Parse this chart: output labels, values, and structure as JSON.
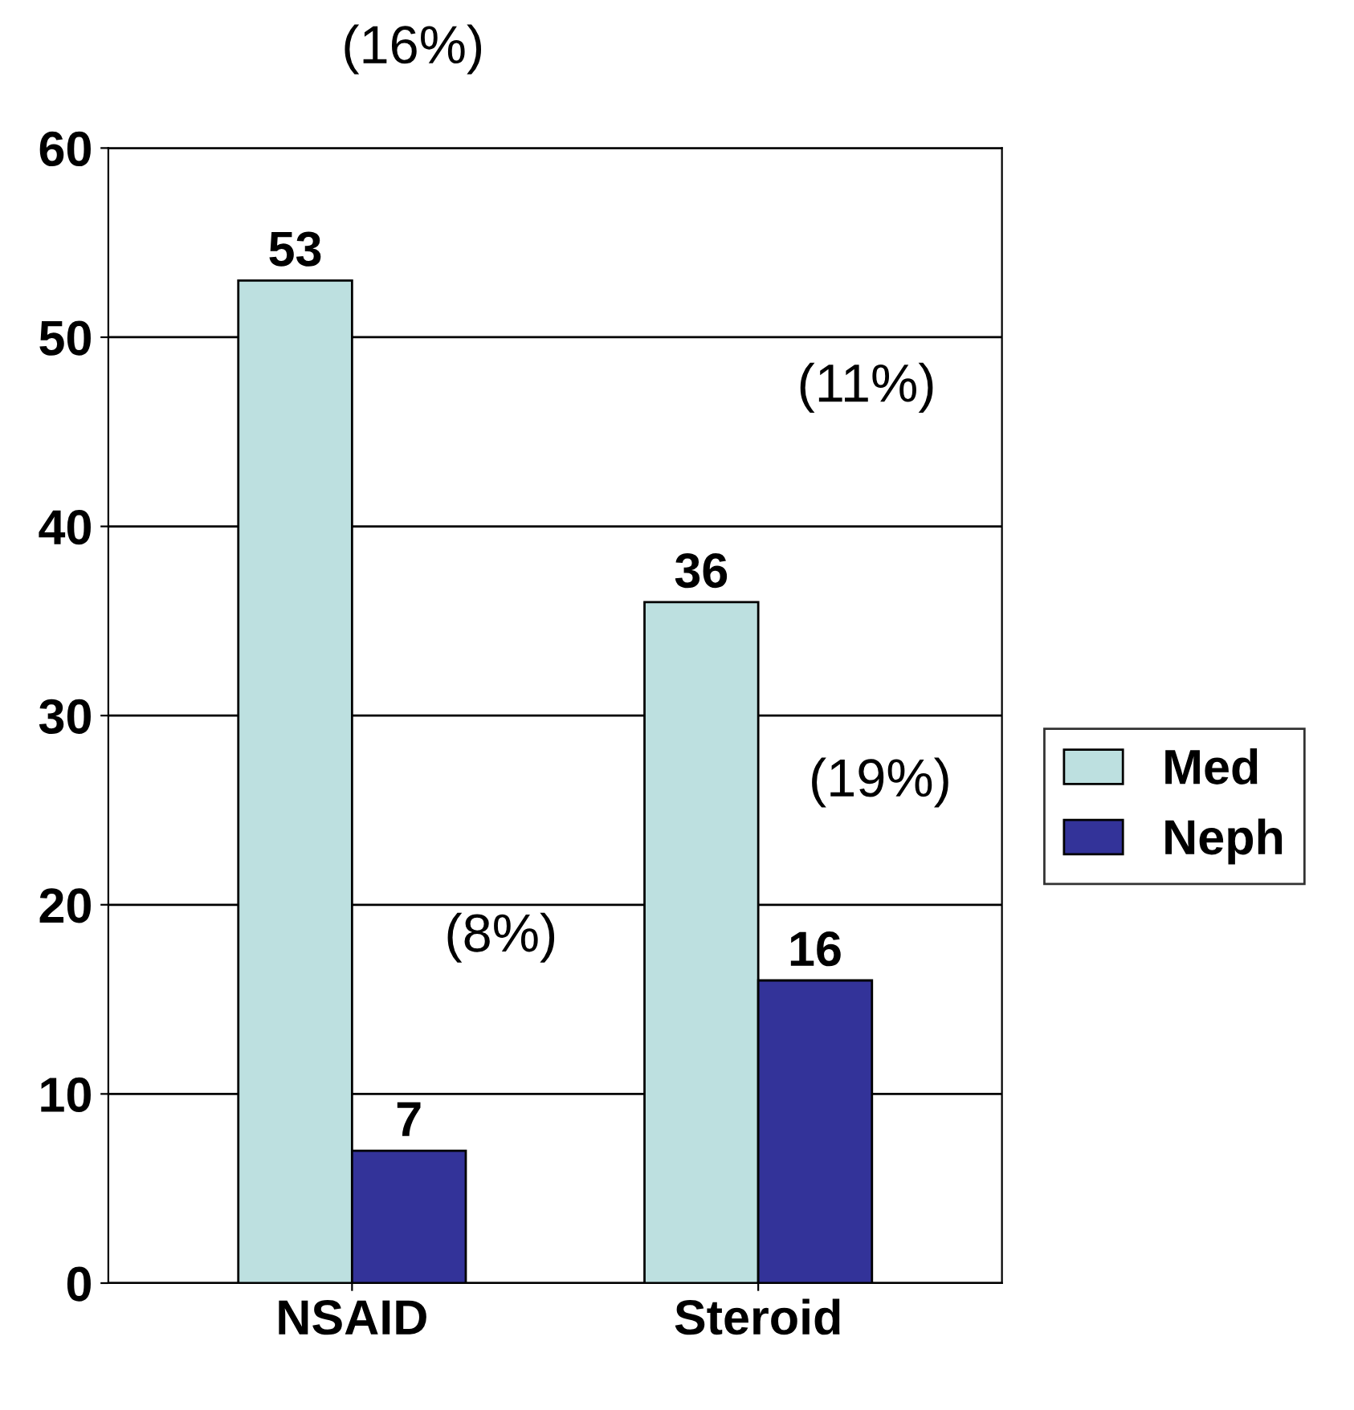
{
  "chart_data": {
    "type": "bar",
    "categories": [
      "NSAID",
      "Steroid"
    ],
    "series": [
      {
        "name": "Med",
        "color": "#bde0e0",
        "values": [
          53,
          36
        ]
      },
      {
        "name": "Neph",
        "color": "#333399",
        "values": [
          7,
          16
        ]
      }
    ],
    "ylim": [
      0,
      60
    ],
    "yticks": [
      0,
      10,
      20,
      30,
      40,
      50,
      60
    ],
    "grid": "y",
    "legend": "right",
    "data_labels": true,
    "annotations": [
      "(16%)",
      "(11%)",
      "(19%)",
      "(8%)"
    ]
  }
}
